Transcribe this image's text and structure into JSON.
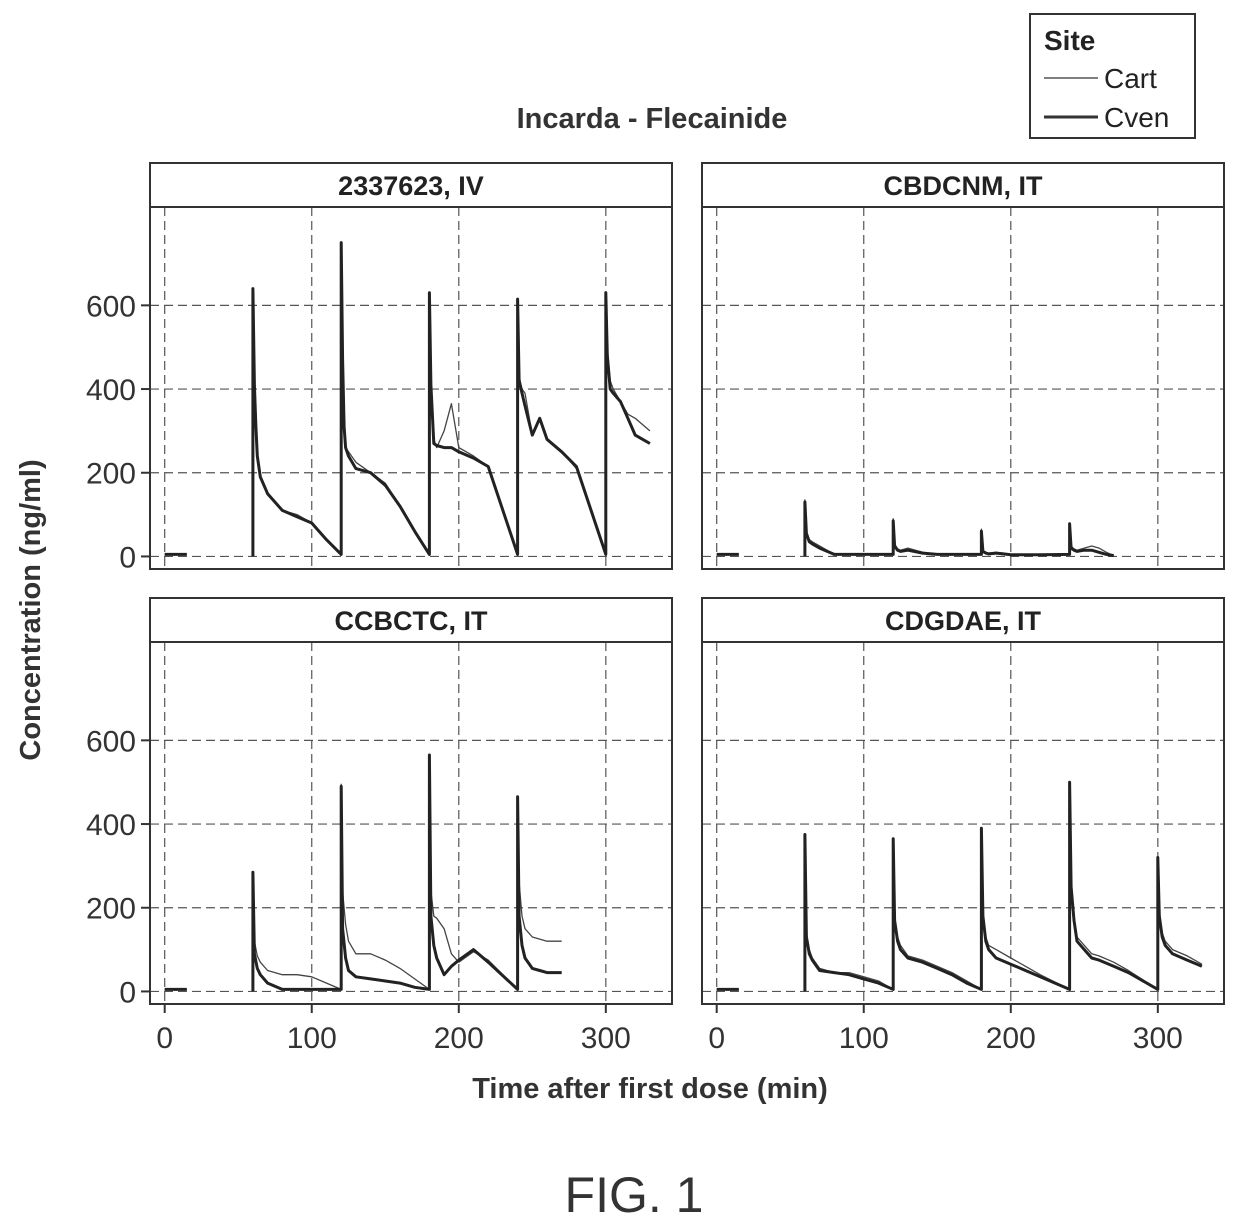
{
  "chart_data": {
    "type": "line",
    "title": "Incarda - Flecainide",
    "xlabel": "Time after first dose (min)",
    "ylabel": "Concentration (ng/ml)",
    "xlim": [
      -10,
      345
    ],
    "ylim": [
      -30,
      835
    ],
    "x_ticks": [
      0,
      100,
      200,
      300
    ],
    "y_ticks": [
      0,
      200,
      400,
      600
    ],
    "x_tick_labels": [
      "0",
      "100",
      "200",
      "300"
    ],
    "y_tick_labels": [
      "0",
      "200",
      "400",
      "600"
    ],
    "grid": true,
    "legend": {
      "title": "Site",
      "position": "top-right",
      "entries": [
        {
          "name": "Cart",
          "style": "thin"
        },
        {
          "name": "Cven",
          "style": "thick"
        }
      ]
    },
    "panels": [
      {
        "label": "2337623, IV",
        "series": [
          {
            "name": "Cart",
            "x": [
              0,
              15,
              null,
              60,
              60,
              61,
              62,
              63,
              65,
              70,
              80,
              90,
              100,
              110,
              120,
              120,
              121,
              122,
              123,
              125,
              130,
              140,
              150,
              160,
              170,
              180,
              180,
              181,
              183,
              185,
              190,
              195,
              200,
              210,
              220,
              240,
              240,
              241,
              243,
              245,
              250,
              255,
              260,
              270,
              280,
              300,
              300,
              301,
              303,
              305,
              310,
              315,
              320,
              330
            ],
            "y": [
              5,
              5,
              null,
              0,
              640,
              420,
              330,
              250,
              190,
              150,
              110,
              100,
              80,
              40,
              5,
              750,
              480,
              320,
              260,
              250,
              225,
              200,
              175,
              120,
              60,
              5,
              630,
              420,
              280,
              260,
              300,
              365,
              260,
              240,
              215,
              5,
              615,
              430,
              400,
              390,
              290,
              330,
              280,
              250,
              210,
              5,
              630,
              500,
              420,
              400,
              370,
              340,
              330,
              300
            ]
          },
          {
            "name": "Cven",
            "x": [
              0,
              15,
              null,
              60,
              60,
              61,
              62,
              63,
              65,
              70,
              80,
              90,
              100,
              110,
              120,
              120,
              121,
              122,
              123,
              125,
              130,
              140,
              150,
              160,
              170,
              180,
              180,
              181,
              183,
              185,
              190,
              195,
              200,
              210,
              220,
              240,
              240,
              241,
              243,
              245,
              250,
              255,
              260,
              270,
              280,
              300,
              300,
              301,
              303,
              305,
              310,
              315,
              320,
              330
            ],
            "y": [
              5,
              5,
              null,
              0,
              640,
              410,
              310,
              240,
              190,
              150,
              110,
              95,
              80,
              40,
              5,
              750,
              470,
              310,
              260,
              240,
              210,
              200,
              170,
              120,
              60,
              5,
              630,
              410,
              270,
              265,
              260,
              260,
              250,
              235,
              215,
              5,
              615,
              420,
              390,
              360,
              290,
              330,
              280,
              250,
              215,
              5,
              630,
              480,
              400,
              390,
              370,
              330,
              290,
              270
            ]
          }
        ]
      },
      {
        "label": "CBDCNM, IT",
        "series": [
          {
            "name": "Cart",
            "x": [
              0,
              15,
              null,
              60,
              60,
              61,
              63,
              65,
              70,
              80,
              90,
              100,
              110,
              120,
              120,
              121,
              123,
              125,
              130,
              140,
              150,
              160,
              170,
              180,
              180,
              181,
              183,
              185,
              190,
              195,
              200,
              210,
              220,
              240,
              240,
              241,
              243,
              245,
              250,
              255,
              260,
              265,
              270
            ],
            "y": [
              5,
              5,
              null,
              0,
              135,
              60,
              40,
              35,
              25,
              5,
              5,
              5,
              5,
              5,
              90,
              30,
              18,
              15,
              20,
              10,
              5,
              5,
              5,
              5,
              65,
              15,
              10,
              8,
              10,
              8,
              5,
              5,
              5,
              5,
              80,
              25,
              18,
              15,
              20,
              25,
              20,
              10,
              2
            ]
          },
          {
            "name": "Cven",
            "x": [
              0,
              15,
              null,
              60,
              60,
              61,
              63,
              65,
              70,
              80,
              90,
              100,
              110,
              120,
              120,
              121,
              123,
              125,
              130,
              140,
              150,
              160,
              170,
              180,
              180,
              181,
              183,
              185,
              190,
              195,
              200,
              210,
              220,
              240,
              240,
              241,
              243,
              245,
              250,
              255,
              260,
              265,
              270
            ],
            "y": [
              5,
              5,
              null,
              0,
              130,
              55,
              35,
              30,
              20,
              5,
              5,
              5,
              5,
              5,
              85,
              25,
              15,
              12,
              15,
              8,
              5,
              5,
              5,
              5,
              60,
              12,
              8,
              6,
              8,
              6,
              4,
              4,
              4,
              5,
              78,
              20,
              15,
              12,
              15,
              15,
              10,
              5,
              2
            ]
          }
        ]
      },
      {
        "label": "CCBCTC, IT",
        "series": [
          {
            "name": "Cart",
            "x": [
              0,
              15,
              null,
              60,
              60,
              61,
              63,
              65,
              70,
              80,
              90,
              100,
              110,
              120,
              120,
              121,
              123,
              125,
              130,
              140,
              150,
              160,
              170,
              180,
              180,
              181,
              183,
              185,
              190,
              195,
              200,
              210,
              220,
              240,
              240,
              241,
              243,
              245,
              250,
              255,
              260,
              270
            ],
            "y": [
              5,
              5,
              null,
              0,
              285,
              120,
              85,
              70,
              50,
              40,
              40,
              35,
              20,
              5,
              495,
              240,
              160,
              120,
              90,
              90,
              75,
              55,
              30,
              5,
              565,
              240,
              180,
              175,
              150,
              90,
              70,
              95,
              75,
              5,
              465,
              260,
              180,
              150,
              130,
              125,
              120,
              120
            ]
          },
          {
            "name": "Cven",
            "x": [
              0,
              15,
              null,
              60,
              60,
              61,
              63,
              65,
              70,
              80,
              90,
              100,
              110,
              120,
              120,
              121,
              123,
              125,
              130,
              140,
              150,
              160,
              170,
              180,
              180,
              181,
              183,
              185,
              190,
              195,
              200,
              210,
              220,
              240,
              240,
              241,
              243,
              245,
              250,
              255,
              260,
              270
            ],
            "y": [
              5,
              5,
              null,
              0,
              285,
              90,
              55,
              40,
              20,
              5,
              5,
              5,
              5,
              5,
              490,
              150,
              80,
              50,
              35,
              30,
              25,
              20,
              10,
              5,
              565,
              180,
              110,
              80,
              40,
              60,
              75,
              100,
              70,
              5,
              465,
              180,
              110,
              80,
              55,
              50,
              45,
              45
            ]
          }
        ]
      },
      {
        "label": "CDGDAE, IT",
        "series": [
          {
            "name": "Cart",
            "x": [
              0,
              15,
              null,
              60,
              60,
              61,
              63,
              65,
              70,
              80,
              90,
              100,
              110,
              120,
              120,
              121,
              123,
              125,
              130,
              140,
              150,
              160,
              170,
              180,
              180,
              181,
              183,
              185,
              190,
              200,
              210,
              220,
              240,
              240,
              241,
              243,
              245,
              250,
              255,
              260,
              270,
              280,
              300,
              300,
              301,
              303,
              305,
              310,
              320,
              330
            ],
            "y": [
              5,
              5,
              null,
              0,
              375,
              140,
              100,
              80,
              55,
              45,
              45,
              35,
              25,
              5,
              365,
              180,
              130,
              110,
              85,
              75,
              60,
              45,
              25,
              5,
              390,
              190,
              130,
              110,
              100,
              80,
              60,
              40,
              5,
              500,
              270,
              180,
              130,
              110,
              90,
              85,
              70,
              50,
              5,
              320,
              190,
              140,
              120,
              100,
              85,
              65
            ]
          },
          {
            "name": "Cven",
            "x": [
              0,
              15,
              null,
              60,
              60,
              61,
              63,
              65,
              70,
              80,
              90,
              100,
              110,
              120,
              120,
              121,
              123,
              125,
              130,
              140,
              150,
              160,
              170,
              180,
              180,
              181,
              183,
              185,
              190,
              200,
              210,
              220,
              240,
              240,
              241,
              243,
              245,
              250,
              255,
              260,
              270,
              280,
              300,
              300,
              301,
              303,
              305,
              310,
              320,
              330
            ],
            "y": [
              5,
              5,
              null,
              0,
              375,
              130,
              90,
              75,
              50,
              45,
              40,
              30,
              20,
              5,
              365,
              170,
              120,
              100,
              80,
              70,
              55,
              40,
              20,
              5,
              390,
              180,
              120,
              100,
              80,
              65,
              50,
              35,
              5,
              500,
              250,
              170,
              120,
              100,
              80,
              75,
              60,
              45,
              5,
              320,
              180,
              130,
              110,
              90,
              75,
              60
            ]
          }
        ]
      }
    ]
  },
  "figure_label": "FIG. 1"
}
